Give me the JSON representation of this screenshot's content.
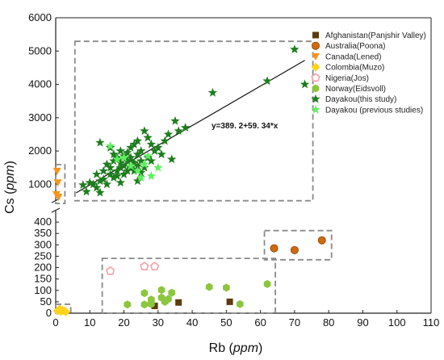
{
  "chart_data": {
    "type": "scatter",
    "xlabel": "Rb",
    "xlabel_unit": "ppm",
    "ylabel": "Cs",
    "ylabel_unit": "ppm",
    "xlim": [
      0,
      110
    ],
    "ylim_lower": [
      0,
      450
    ],
    "ylim_upper": [
      500,
      6000
    ],
    "axis_break": "y",
    "x_ticks": [
      "0",
      "10",
      "20",
      "30",
      "40",
      "50",
      "60",
      "70",
      "80",
      "90",
      "100",
      "110"
    ],
    "y_ticks_lower": [
      "0",
      "50",
      "100",
      "150",
      "200",
      "250",
      "300",
      "350",
      "400"
    ],
    "y_ticks_upper": [
      "1000",
      "2000",
      "3000",
      "4000",
      "5000",
      "6000"
    ],
    "equation": "y=389. 2+59. 34*x",
    "regression": {
      "intercept": 389.2,
      "slope": 59.34,
      "x_range": [
        6,
        73
      ]
    },
    "legend_position": "top-right",
    "series": [
      {
        "name": "Afghanistan(Panjshir Valley)",
        "marker": "square",
        "color": "#5c3a0a",
        "x": [
          29,
          36,
          51
        ],
        "y": [
          32,
          47,
          50
        ]
      },
      {
        "name": "Australia(Poona)",
        "marker": "circle",
        "color": "#d06a10",
        "x": [
          64,
          70,
          78
        ],
        "y": [
          285,
          277,
          320
        ]
      },
      {
        "name": "Canada(Lened)",
        "marker": "triangle-down",
        "color": "#f7941d",
        "x": [
          0.4,
          0.6,
          0.2,
          0.8
        ],
        "y": [
          1400,
          1050,
          700,
          620
        ]
      },
      {
        "name": "Colombia(Muzo)",
        "marker": "diamond",
        "color": "#ffd21f",
        "x": [
          0.5,
          1,
          1.5,
          2,
          2.5,
          3,
          1.2
        ],
        "y": [
          10,
          15,
          8,
          12,
          10,
          6,
          18
        ]
      },
      {
        "name": "Nigeria(Jos)",
        "marker": "pentagon",
        "color": "#f4a0a8",
        "x": [
          16,
          26,
          29
        ],
        "y": [
          185,
          205,
          205
        ]
      },
      {
        "name": "Norway(Eidsvoll)",
        "marker": "hexagon",
        "color": "#8cc63f",
        "x": [
          21,
          26,
          26,
          28,
          28,
          31,
          31,
          32,
          33,
          34,
          45,
          50,
          54,
          62
        ],
        "y": [
          38,
          38,
          88,
          40,
          60,
          102,
          68,
          50,
          62,
          90,
          115,
          112,
          40,
          128
        ]
      },
      {
        "name": "Dayakou(this study)",
        "marker": "star",
        "color": "#1e7d1e",
        "x": [
          8,
          9,
          10,
          11,
          12,
          12,
          13,
          13,
          14,
          14,
          15,
          15,
          16,
          16,
          17,
          17,
          17,
          18,
          18,
          18,
          19,
          19,
          19,
          20,
          20,
          20,
          21,
          21,
          21,
          22,
          22,
          22,
          23,
          23,
          23,
          24,
          24,
          24,
          25,
          25,
          25,
          26,
          26,
          27,
          27,
          28,
          28,
          29,
          30,
          31,
          32,
          33,
          34,
          35,
          36,
          38,
          46,
          62,
          70,
          73,
          13,
          16,
          19,
          24
        ],
        "y": [
          980,
          780,
          1050,
          1000,
          900,
          1300,
          750,
          1100,
          1400,
          1150,
          1000,
          1600,
          1300,
          1500,
          1200,
          1700,
          1900,
          1400,
          1250,
          1800,
          1500,
          1650,
          2000,
          1300,
          1550,
          1850,
          1400,
          1700,
          1950,
          1500,
          1800,
          2100,
          1400,
          1650,
          2200,
          1550,
          1900,
          2300,
          1350,
          1700,
          2000,
          1500,
          2600,
          1800,
          2400,
          1700,
          2200,
          2000,
          2100,
          1900,
          2300,
          2500,
          1750,
          2900,
          2600,
          2700,
          3750,
          4100,
          5050,
          4000,
          2250,
          2100,
          1050,
          1100
        ]
      },
      {
        "name": "Dayakou (previous studies)",
        "marker": "star",
        "color": "#5df05d",
        "x": [
          16,
          18,
          20,
          22,
          24,
          25,
          26,
          27,
          28,
          30
        ],
        "y": [
          2150,
          1750,
          1800,
          1550,
          1400,
          1200,
          1600,
          1850,
          1250,
          1500
        ]
      }
    ]
  }
}
